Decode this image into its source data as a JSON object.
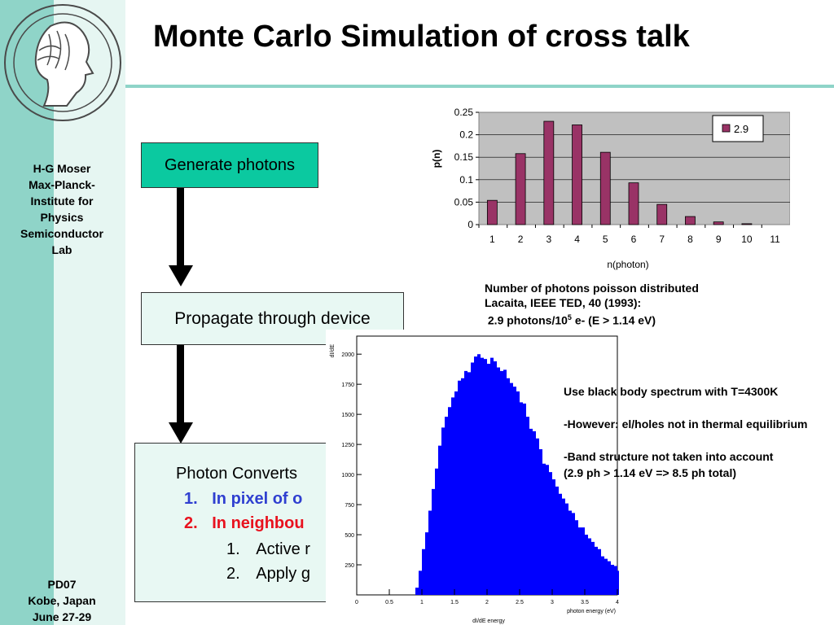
{
  "title": "Monte Carlo Simulation of cross talk",
  "sidebar": {
    "author": [
      "H-G Moser",
      "Max-Planck-",
      "Institute for",
      "Physics",
      "Semiconductor",
      "Lab"
    ],
    "conference": [
      "PD07",
      "Kobe, Japan",
      "June 27-29"
    ]
  },
  "flow": {
    "generate": "Generate photons",
    "propagate": "Propagate through device",
    "convert": "Photon Converts",
    "items": [
      {
        "num": "1.",
        "text": "In pixel of o"
      },
      {
        "num": "2.",
        "text": "In neighbou"
      }
    ],
    "subitems": [
      {
        "num": "1.",
        "text": "Active r"
      },
      {
        "num": "2.",
        "text": "Apply g"
      }
    ]
  },
  "colors": {
    "sidebar": "#8fd4c8",
    "generate_box": "#0bc9a0",
    "item1": "#2f3fd0",
    "item2": "#e8121e",
    "bar": "#993366",
    "histogram": "#0000ff"
  },
  "chart_data": [
    {
      "type": "bar",
      "categories": [
        "1",
        "2",
        "3",
        "4",
        "5",
        "6",
        "7",
        "8",
        "9",
        "10",
        "11"
      ],
      "series": [
        {
          "name": "2.9",
          "values": [
            0.054,
            0.158,
            0.23,
            0.222,
            0.161,
            0.093,
            0.045,
            0.018,
            0.006,
            0.002,
            0.0
          ]
        }
      ],
      "xlabel": "n(photon)",
      "ylabel": "p(n)",
      "ylim": [
        0,
        0.25
      ],
      "yticks": [
        "0",
        "0.05",
        "0.1",
        "0.15",
        "0.2",
        "0.25"
      ],
      "grid": true,
      "legend": "top-right"
    },
    {
      "type": "bar",
      "xlabel": "photon energy (eV)",
      "ylabel": "dI/dE",
      "caption": "dI/dE energy",
      "xlim": [
        0,
        4
      ],
      "ylim": [
        0,
        2150
      ],
      "xticks": [
        "0",
        "0.5",
        "1",
        "1.5",
        "2",
        "2.5",
        "3",
        "3.5",
        "4"
      ],
      "yticks": [
        "250",
        "500",
        "750",
        "1000",
        "1250",
        "1500",
        "1750",
        "2000"
      ],
      "bin_width": 0.05,
      "values": [
        0,
        0,
        0,
        0,
        0,
        0,
        0,
        0,
        0,
        0,
        0,
        0,
        0,
        0,
        0,
        0,
        0,
        0,
        60,
        200,
        380,
        520,
        700,
        880,
        1050,
        1240,
        1390,
        1480,
        1560,
        1640,
        1690,
        1780,
        1800,
        1860,
        1850,
        1930,
        1980,
        2000,
        1970,
        1960,
        1920,
        1970,
        1940,
        1890,
        1860,
        1870,
        1800,
        1760,
        1730,
        1690,
        1600,
        1590,
        1480,
        1380,
        1360,
        1300,
        1210,
        1090,
        1080,
        1020,
        960,
        900,
        840,
        800,
        760,
        700,
        680,
        620,
        560,
        560,
        500,
        470,
        440,
        400,
        380,
        320,
        300,
        280,
        250,
        240,
        200,
        190,
        160,
        150,
        130,
        120,
        100,
        90,
        80,
        70,
        60,
        55,
        50,
        40,
        35,
        30
      ]
    }
  ],
  "chart_caption": [
    "Number of photons poisson distributed",
    "Lacaita, IEEE  TED, 40 (1993):",
    " 2.9 photons/10",
    "5",
    " e- (E > 1.14 eV)"
  ],
  "notes": [
    "Use black body spectrum with T=4300K",
    "-However: el/holes not in thermal equilibrium",
    "-Band structure not taken into account",
    "(2.9 ph > 1.14 eV  => 8.5 ph total)"
  ]
}
